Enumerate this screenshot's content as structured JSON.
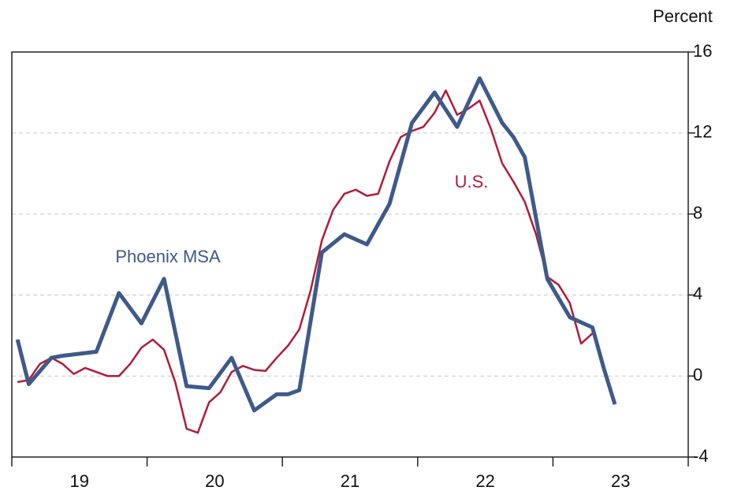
{
  "chart_data": {
    "type": "line",
    "y_axis_label": "Percent",
    "xlim": [
      19,
      24
    ],
    "xticks": [
      19,
      20,
      21,
      22,
      23,
      24
    ],
    "x_categories": [
      "19",
      "20",
      "21",
      "22",
      "23"
    ],
    "ylim": [
      -4,
      16
    ],
    "yticks": [
      -4,
      0,
      4,
      8,
      12,
      16
    ],
    "grid": true,
    "series": [
      {
        "name": "U.S.",
        "color": "#b01c3a",
        "width": 2.5,
        "x": [
          19.042,
          19.125,
          19.208,
          19.292,
          19.375,
          19.458,
          19.542,
          19.625,
          19.708,
          19.792,
          19.875,
          19.958,
          20.042,
          20.125,
          20.208,
          20.292,
          20.375,
          20.458,
          20.542,
          20.625,
          20.708,
          20.792,
          20.875,
          20.958,
          21.042,
          21.125,
          21.208,
          21.292,
          21.375,
          21.458,
          21.542,
          21.625,
          21.708,
          21.792,
          21.875,
          21.958,
          22.042,
          22.125,
          22.208,
          22.292,
          22.375,
          22.458,
          22.542,
          22.625,
          22.708,
          22.792,
          22.875,
          22.958,
          23.042,
          23.125,
          23.208,
          23.292
        ],
        "values": [
          -0.3,
          -0.2,
          0.6,
          0.9,
          0.6,
          0.1,
          0.4,
          0.2,
          0.0,
          0.0,
          0.6,
          1.4,
          1.8,
          1.3,
          -0.3,
          -2.6,
          -2.8,
          -1.3,
          -0.8,
          0.2,
          0.5,
          0.3,
          0.25,
          0.9,
          1.5,
          2.3,
          4.2,
          6.7,
          8.2,
          9.0,
          9.2,
          8.9,
          9.0,
          10.6,
          11.8,
          12.1,
          12.3,
          13.0,
          14.1,
          12.9,
          13.2,
          13.6,
          12.2,
          10.5,
          9.6,
          8.6,
          7.0,
          4.9,
          4.5,
          3.6,
          1.6,
          2.1
        ]
      },
      {
        "name": "Phoenix MSA",
        "color": "#3e5a8a",
        "width": 5,
        "x": [
          19.042,
          19.125,
          19.292,
          19.375,
          19.625,
          19.792,
          19.958,
          20.125,
          20.292,
          20.458,
          20.625,
          20.792,
          20.958,
          21.042,
          21.125,
          21.292,
          21.458,
          21.625,
          21.792,
          21.958,
          22.125,
          22.292,
          22.458,
          22.625,
          22.708,
          22.792,
          22.958,
          23.125,
          23.292,
          23.375,
          23.458
        ],
        "values": [
          1.8,
          -0.4,
          0.9,
          1.0,
          1.2,
          4.1,
          2.6,
          4.8,
          -0.5,
          -0.6,
          0.9,
          -1.7,
          -0.9,
          -0.9,
          -0.7,
          6.1,
          7.0,
          6.5,
          8.5,
          12.5,
          14.0,
          12.3,
          14.7,
          12.5,
          11.8,
          10.8,
          4.8,
          2.9,
          2.4,
          0.4,
          -1.4
        ]
      }
    ]
  }
}
